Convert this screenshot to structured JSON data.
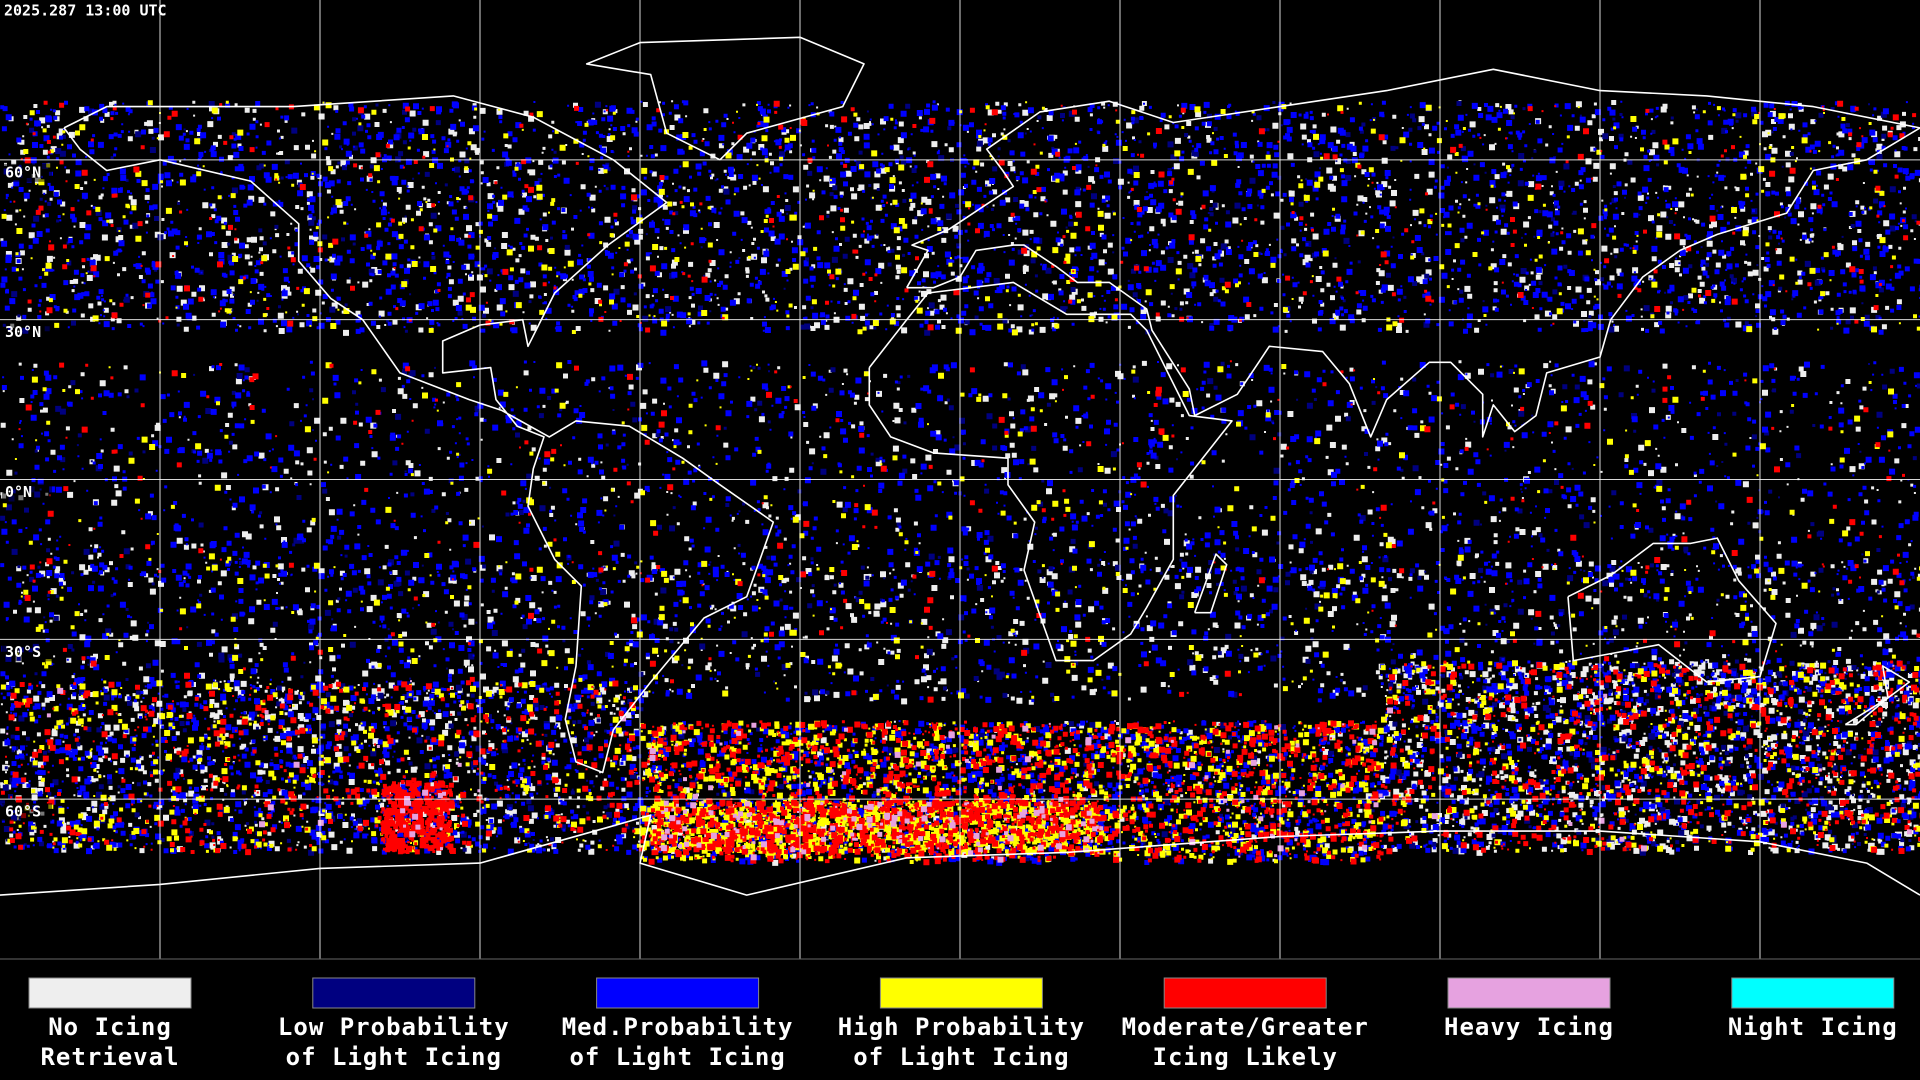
{
  "header": {
    "timestamp": "2025.287 13:00 UTC"
  },
  "map": {
    "latitude_labels": [
      "60°N",
      "30°N",
      "0°N",
      "30°S",
      "60°S"
    ]
  },
  "legend": {
    "items": [
      {
        "label": [
          "No Icing",
          "Retrieval"
        ],
        "color": "#eeeeee"
      },
      {
        "label": [
          "Low Probability",
          "of Light Icing"
        ],
        "color": "#000080"
      },
      {
        "label": [
          "Med.Probability",
          "of Light Icing"
        ],
        "color": "#0000ff"
      },
      {
        "label": [
          "High Probability",
          "of Light Icing"
        ],
        "color": "#ffff00"
      },
      {
        "label": [
          "Moderate/Greater",
          "Icing Likely"
        ],
        "color": "#ff0000"
      },
      {
        "label": [
          "Heavy Icing"
        ],
        "color": "#e6a2e0"
      },
      {
        "label": [
          "Night Icing"
        ],
        "color": "#00ffff"
      }
    ]
  }
}
